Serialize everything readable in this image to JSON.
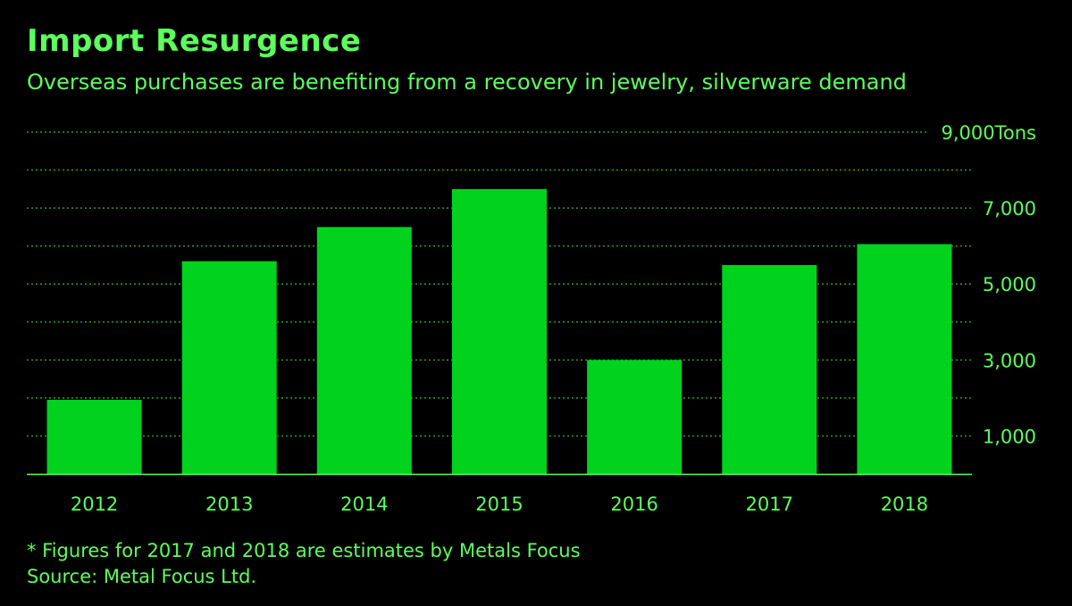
{
  "title": "Import Resurgence",
  "subtitle": "Overseas purchases are benefiting from a recovery in jewelry, silverware demand",
  "footnote": "* Figures for 2017 and 2018 are estimates by Metals Focus",
  "source": "Source: Metal Focus Ltd.",
  "colors": {
    "background": "#000000",
    "bar": "#00d21e",
    "text": "#5cff5c",
    "grid": "#2f9a2f"
  },
  "chart_data": {
    "type": "bar",
    "categories": [
      "2012",
      "2013",
      "2014",
      "2015",
      "2016",
      "2017",
      "2018"
    ],
    "values": [
      1950,
      5600,
      6500,
      7500,
      3000,
      5500,
      6050
    ],
    "ylabel": "",
    "unit": "Tons",
    "ylim": [
      0,
      9000
    ],
    "yticks": [
      1000,
      3000,
      5000,
      7000,
      9000
    ],
    "ytick_labels": [
      "1,000",
      "3,000",
      "5,000",
      "7,000",
      "9,000Tons"
    ],
    "gridlines": [
      1000,
      2000,
      3000,
      4000,
      5000,
      6000,
      7000,
      8000,
      9000
    ],
    "grid": true,
    "grid_style": "dotted",
    "legend": "none",
    "axis_position": "right"
  }
}
